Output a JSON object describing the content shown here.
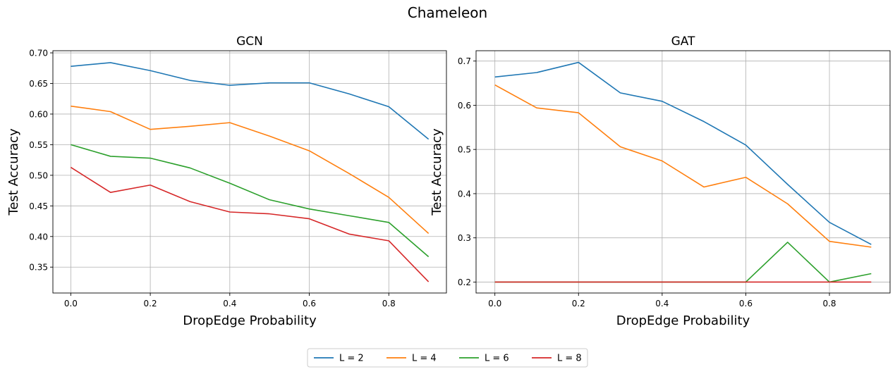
{
  "figure": {
    "suptitle": "Chameleon"
  },
  "legend": {
    "placement": "bottom-center",
    "entries": [
      {
        "label": "L = 2",
        "color": "#1f77b4"
      },
      {
        "label": "L = 4",
        "color": "#ff7f0e"
      },
      {
        "label": "L = 6",
        "color": "#2ca02c"
      },
      {
        "label": "L = 8",
        "color": "#d62728"
      }
    ]
  },
  "chart_data": [
    {
      "type": "line",
      "title": "GCN",
      "xlabel": "DropEdge Probability",
      "ylabel": "Test Accuracy",
      "grid": true,
      "xlim": [
        -0.045,
        0.945
      ],
      "ylim": [
        0.3077,
        0.7035
      ],
      "xticks": [
        0.0,
        0.2,
        0.4,
        0.6,
        0.8
      ],
      "xtick_labels": [
        "0.0",
        "0.2",
        "0.4",
        "0.6",
        "0.8"
      ],
      "yticks": [
        0.35,
        0.4,
        0.45,
        0.5,
        0.55,
        0.6,
        0.65,
        0.7
      ],
      "ytick_labels": [
        "0.35",
        "0.40",
        "0.45",
        "0.50",
        "0.55",
        "0.60",
        "0.65",
        "0.70"
      ],
      "x": [
        0.0,
        0.1,
        0.2,
        0.3,
        0.4,
        0.5,
        0.6,
        0.7,
        0.8,
        0.9
      ],
      "series": [
        {
          "name": "L = 2",
          "color": "#1f77b4",
          "values": [
            0.678,
            0.684,
            0.671,
            0.655,
            0.647,
            0.651,
            0.651,
            0.633,
            0.612,
            0.559
          ]
        },
        {
          "name": "L = 4",
          "color": "#ff7f0e",
          "values": [
            0.613,
            0.604,
            0.575,
            0.58,
            0.586,
            0.564,
            0.54,
            0.503,
            0.464,
            0.405
          ]
        },
        {
          "name": "L = 6",
          "color": "#2ca02c",
          "values": [
            0.55,
            0.531,
            0.528,
            0.512,
            0.487,
            0.46,
            0.445,
            0.434,
            0.423,
            0.367
          ]
        },
        {
          "name": "L = 8",
          "color": "#d62728",
          "values": [
            0.513,
            0.472,
            0.484,
            0.457,
            0.44,
            0.437,
            0.429,
            0.404,
            0.393,
            0.326
          ]
        }
      ]
    },
    {
      "type": "line",
      "title": "GAT",
      "xlabel": "DropEdge Probability",
      "ylabel": "Test Accuracy",
      "grid": true,
      "xlim": [
        -0.045,
        0.945
      ],
      "ylim": [
        0.1752,
        0.7234
      ],
      "xticks": [
        0.0,
        0.2,
        0.4,
        0.6,
        0.8
      ],
      "xtick_labels": [
        "0.0",
        "0.2",
        "0.4",
        "0.6",
        "0.8"
      ],
      "yticks": [
        0.2,
        0.3,
        0.4,
        0.5,
        0.6,
        0.7
      ],
      "ytick_labels": [
        "0.2",
        "0.3",
        "0.4",
        "0.5",
        "0.6",
        "0.7"
      ],
      "x": [
        0.0,
        0.1,
        0.2,
        0.3,
        0.4,
        0.5,
        0.6,
        0.7,
        0.8,
        0.9
      ],
      "series": [
        {
          "name": "L = 2",
          "color": "#1f77b4",
          "values": [
            0.664,
            0.674,
            0.697,
            0.628,
            0.609,
            0.563,
            0.51,
            0.421,
            0.335,
            0.285
          ]
        },
        {
          "name": "L = 4",
          "color": "#ff7f0e",
          "values": [
            0.646,
            0.594,
            0.583,
            0.506,
            0.474,
            0.415,
            0.437,
            0.377,
            0.292,
            0.279
          ]
        },
        {
          "name": "L = 6",
          "color": "#2ca02c",
          "values": [
            0.2,
            0.2,
            0.2,
            0.2,
            0.2,
            0.2,
            0.2,
            0.29,
            0.2,
            0.219
          ]
        },
        {
          "name": "L = 8",
          "color": "#d62728",
          "values": [
            0.2,
            0.2,
            0.2,
            0.2,
            0.2,
            0.2,
            0.2,
            0.2,
            0.2,
            0.2
          ]
        }
      ]
    }
  ]
}
